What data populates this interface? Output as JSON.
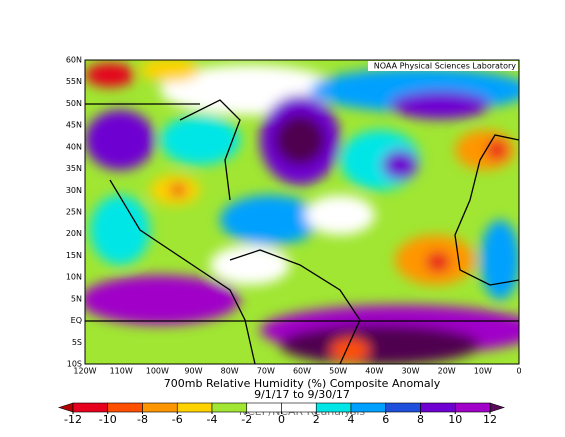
{
  "credit": "NOAA Physical Sciences Laboratory",
  "lat_labels": [
    "60N",
    "55N",
    "50N",
    "45N",
    "40N",
    "35N",
    "30N",
    "25N",
    "20N",
    "15N",
    "10N",
    "5N",
    "EQ",
    "5S",
    "10S"
  ],
  "lon_labels": [
    "120W",
    "110W",
    "100W",
    "90W",
    "80W",
    "70W",
    "60W",
    "50W",
    "40W",
    "30W",
    "20W",
    "10W",
    "0"
  ],
  "title": "700mb Relative Humidity (%) Composite Anomaly",
  "period": "9/1/17  to 9/30/17",
  "source": "NCEP/NCAR Reanalysis",
  "colorbar": {
    "ticks": [
      -12,
      -10,
      -8,
      -6,
      -4,
      -2,
      0,
      2,
      4,
      6,
      8,
      10,
      12
    ],
    "under_color": "#b00000",
    "over_color": "#5a0a5a",
    "colors": [
      "#e6001e",
      "#ff5000",
      "#ff9600",
      "#ffd200",
      "#a0e632",
      "#ffffff",
      "#ffffff",
      "#00e6e6",
      "#00a0ff",
      "#1e50dc",
      "#6e00d2",
      "#a000c8"
    ]
  }
}
